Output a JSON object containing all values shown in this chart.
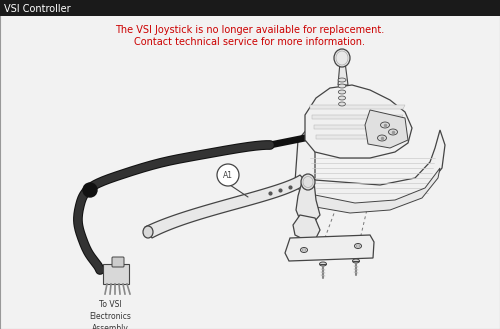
{
  "title": "VSI Controller",
  "warning_line1": "The VSI Joystick is no longer available for replacement.",
  "warning_line2": "Contact technical service for more information.",
  "label_A1": "A1",
  "label_connector": "To VSI\nElectronics\nAssembly",
  "header_bg": "#1a1a1a",
  "header_text_color": "#ffffff",
  "warning_color": "#cc0000",
  "bg_color": "#f2f2f2",
  "border_color": "#999999",
  "line_color": "#444444",
  "fig_width": 5.0,
  "fig_height": 3.29,
  "dpi": 100
}
